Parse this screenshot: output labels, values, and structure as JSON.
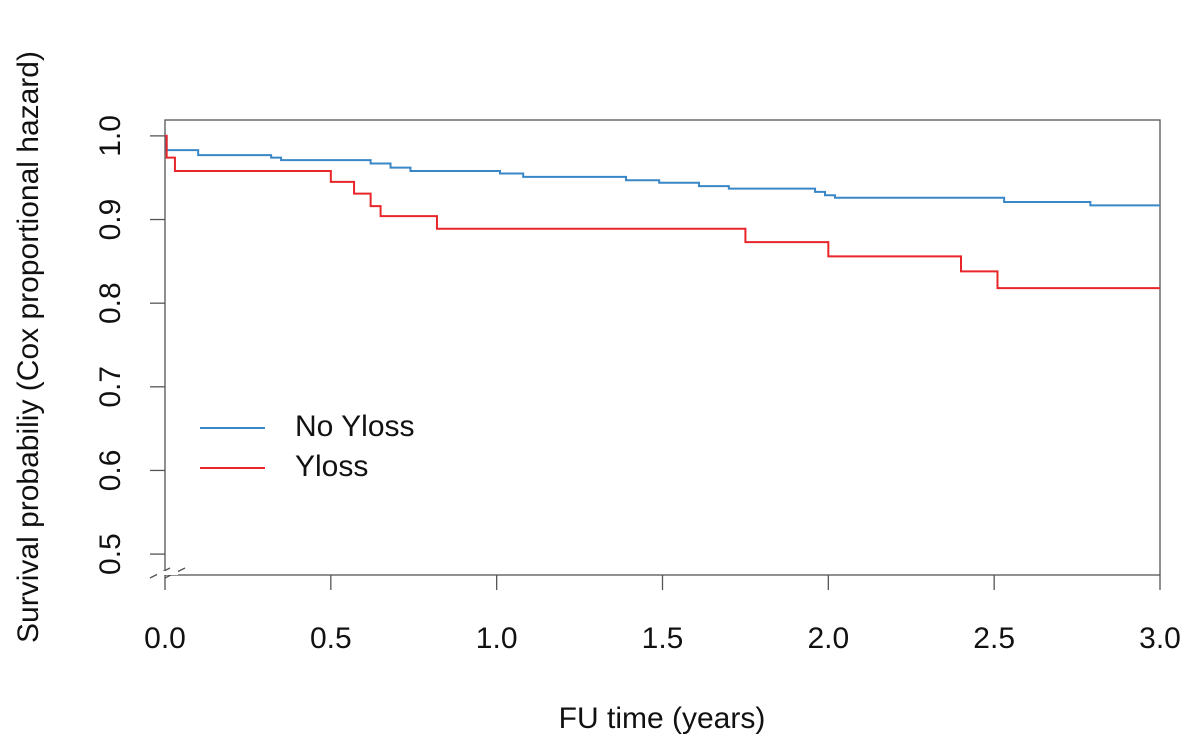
{
  "chart_data": {
    "type": "step",
    "x_label": "FU time (years)",
    "y_label": "Survival probabiliy (Cox proportional hazard)",
    "xlim": [
      0,
      3
    ],
    "ylim": [
      0.475,
      1.019
    ],
    "xticks": [
      {
        "value": 0,
        "label": "0.0"
      },
      0.5,
      {
        "value": 1,
        "label": "1.0"
      },
      1.5,
      {
        "value": 2,
        "label": "2.0"
      },
      2.5,
      {
        "value": 3,
        "label": "3.0"
      }
    ],
    "yticks": [
      0.5,
      0.6,
      0.7,
      0.8,
      0.9,
      {
        "value": 1,
        "label": "1.0"
      }
    ],
    "legend": "left",
    "series": [
      {
        "name": "No Yloss",
        "color": "#3a87c8",
        "x": [
          0,
          0.005,
          0.1,
          0.32,
          0.35,
          0.62,
          0.68,
          0.74,
          1.01,
          1.08,
          1.39,
          1.49,
          1.61,
          1.7,
          1.96,
          1.99,
          2.02,
          2.53,
          2.79,
          3.0
        ],
        "values": [
          1.0,
          0.983,
          0.977,
          0.974,
          0.971,
          0.967,
          0.962,
          0.958,
          0.955,
          0.951,
          0.947,
          0.944,
          0.94,
          0.937,
          0.933,
          0.929,
          0.926,
          0.921,
          0.917,
          0.917
        ]
      },
      {
        "name": "Yloss",
        "color": "#e8262a",
        "x": [
          0,
          0.005,
          0.03,
          0.5,
          0.57,
          0.62,
          0.65,
          0.82,
          1.75,
          2.0,
          2.4,
          2.51,
          3.0
        ],
        "values": [
          1.0,
          0.974,
          0.958,
          0.945,
          0.931,
          0.916,
          0.904,
          0.889,
          0.873,
          0.856,
          0.838,
          0.818,
          0.818
        ]
      }
    ]
  }
}
